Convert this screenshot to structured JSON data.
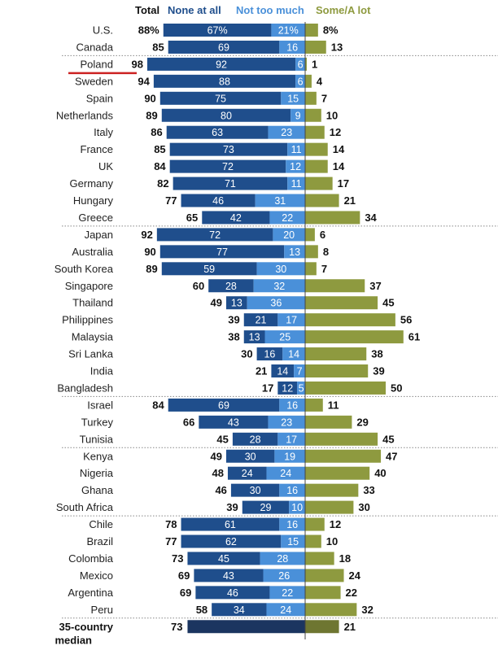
{
  "chart_data": {
    "type": "bar",
    "legend": {
      "total": "Total",
      "none": "None at all",
      "notmuch": "Not too much",
      "some": "Some/A lot"
    },
    "colors": {
      "none": "#1f4e8c",
      "notmuch": "#4a90d9",
      "some": "#8e9a3f",
      "median_none": "#1b3560",
      "median_some": "#6e7631",
      "divider": "#888888",
      "underline": "#cc2222"
    },
    "rows": [
      {
        "name": "U.S.",
        "total": "88%",
        "none": 67,
        "none_label": "67%",
        "notmuch": 21,
        "notmuch_label": "21%",
        "some": 8,
        "some_label": "8%"
      },
      {
        "name": "Canada",
        "total": "85",
        "none": 69,
        "none_label": "69",
        "notmuch": 16,
        "notmuch_label": "16",
        "some": 13,
        "some_label": "13"
      },
      {
        "name": "Poland",
        "total": "98",
        "none": 92,
        "none_label": "92",
        "notmuch": 6,
        "notmuch_label": "6",
        "some": 1,
        "some_label": "1",
        "highlight": true
      },
      {
        "name": "Sweden",
        "total": "94",
        "none": 88,
        "none_label": "88",
        "notmuch": 6,
        "notmuch_label": "6",
        "some": 4,
        "some_label": "4"
      },
      {
        "name": "Spain",
        "total": "90",
        "none": 75,
        "none_label": "75",
        "notmuch": 15,
        "notmuch_label": "15",
        "some": 7,
        "some_label": "7"
      },
      {
        "name": "Netherlands",
        "total": "89",
        "none": 80,
        "none_label": "80",
        "notmuch": 9,
        "notmuch_label": "9",
        "some": 10,
        "some_label": "10"
      },
      {
        "name": "Italy",
        "total": "86",
        "none": 63,
        "none_label": "63",
        "notmuch": 23,
        "notmuch_label": "23",
        "some": 12,
        "some_label": "12"
      },
      {
        "name": "France",
        "total": "85",
        "none": 73,
        "none_label": "73",
        "notmuch": 11,
        "notmuch_label": "11",
        "some": 14,
        "some_label": "14"
      },
      {
        "name": "UK",
        "total": "84",
        "none": 72,
        "none_label": "72",
        "notmuch": 12,
        "notmuch_label": "12",
        "some": 14,
        "some_label": "14"
      },
      {
        "name": "Germany",
        "total": "82",
        "none": 71,
        "none_label": "71",
        "notmuch": 11,
        "notmuch_label": "11",
        "some": 17,
        "some_label": "17"
      },
      {
        "name": "Hungary",
        "total": "77",
        "none": 46,
        "none_label": "46",
        "notmuch": 31,
        "notmuch_label": "31",
        "some": 21,
        "some_label": "21"
      },
      {
        "name": "Greece",
        "total": "65",
        "none": 42,
        "none_label": "42",
        "notmuch": 22,
        "notmuch_label": "22",
        "some": 34,
        "some_label": "34"
      },
      {
        "name": "Japan",
        "total": "92",
        "none": 72,
        "none_label": "72",
        "notmuch": 20,
        "notmuch_label": "20",
        "some": 6,
        "some_label": "6"
      },
      {
        "name": "Australia",
        "total": "90",
        "none": 77,
        "none_label": "77",
        "notmuch": 13,
        "notmuch_label": "13",
        "some": 8,
        "some_label": "8"
      },
      {
        "name": "South Korea",
        "total": "89",
        "none": 59,
        "none_label": "59",
        "notmuch": 30,
        "notmuch_label": "30",
        "some": 7,
        "some_label": "7"
      },
      {
        "name": "Singapore",
        "total": "60",
        "none": 28,
        "none_label": "28",
        "notmuch": 32,
        "notmuch_label": "32",
        "some": 37,
        "some_label": "37"
      },
      {
        "name": "Thailand",
        "total": "49",
        "none": 13,
        "none_label": "13",
        "notmuch": 36,
        "notmuch_label": "36",
        "some": 45,
        "some_label": "45"
      },
      {
        "name": "Philippines",
        "total": "39",
        "none": 21,
        "none_label": "21",
        "notmuch": 17,
        "notmuch_label": "17",
        "some": 56,
        "some_label": "56"
      },
      {
        "name": "Malaysia",
        "total": "38",
        "none": 13,
        "none_label": "13",
        "notmuch": 25,
        "notmuch_label": "25",
        "some": 61,
        "some_label": "61"
      },
      {
        "name": "Sri Lanka",
        "total": "30",
        "none": 16,
        "none_label": "16",
        "notmuch": 14,
        "notmuch_label": "14",
        "some": 38,
        "some_label": "38"
      },
      {
        "name": "India",
        "total": "21",
        "none": 14,
        "none_label": "14",
        "notmuch": 7,
        "notmuch_label": "7",
        "some": 39,
        "some_label": "39"
      },
      {
        "name": "Bangladesh",
        "total": "17",
        "none": 12,
        "none_label": "12",
        "notmuch": 5,
        "notmuch_label": "5",
        "some": 50,
        "some_label": "50"
      },
      {
        "name": "Israel",
        "total": "84",
        "none": 69,
        "none_label": "69",
        "notmuch": 16,
        "notmuch_label": "16",
        "some": 11,
        "some_label": "11"
      },
      {
        "name": "Turkey",
        "total": "66",
        "none": 43,
        "none_label": "43",
        "notmuch": 23,
        "notmuch_label": "23",
        "some": 29,
        "some_label": "29"
      },
      {
        "name": "Tunisia",
        "total": "45",
        "none": 28,
        "none_label": "28",
        "notmuch": 17,
        "notmuch_label": "17",
        "some": 45,
        "some_label": "45"
      },
      {
        "name": "Kenya",
        "total": "49",
        "none": 30,
        "none_label": "30",
        "notmuch": 19,
        "notmuch_label": "19",
        "some": 47,
        "some_label": "47"
      },
      {
        "name": "Nigeria",
        "total": "48",
        "none": 24,
        "none_label": "24",
        "notmuch": 24,
        "notmuch_label": "24",
        "some": 40,
        "some_label": "40"
      },
      {
        "name": "Ghana",
        "total": "46",
        "none": 30,
        "none_label": "30",
        "notmuch": 16,
        "notmuch_label": "16",
        "some": 33,
        "some_label": "33"
      },
      {
        "name": "South Africa",
        "total": "39",
        "none": 29,
        "none_label": "29",
        "notmuch": 10,
        "notmuch_label": "10",
        "some": 30,
        "some_label": "30"
      },
      {
        "name": "Chile",
        "total": "78",
        "none": 61,
        "none_label": "61",
        "notmuch": 16,
        "notmuch_label": "16",
        "some": 12,
        "some_label": "12"
      },
      {
        "name": "Brazil",
        "total": "77",
        "none": 62,
        "none_label": "62",
        "notmuch": 15,
        "notmuch_label": "15",
        "some": 10,
        "some_label": "10"
      },
      {
        "name": "Colombia",
        "total": "73",
        "none": 45,
        "none_label": "45",
        "notmuch": 28,
        "notmuch_label": "28",
        "some": 18,
        "some_label": "18"
      },
      {
        "name": "Mexico",
        "total": "69",
        "none": 43,
        "none_label": "43",
        "notmuch": 26,
        "notmuch_label": "26",
        "some": 24,
        "some_label": "24"
      },
      {
        "name": "Argentina",
        "total": "69",
        "none": 46,
        "none_label": "46",
        "notmuch": 22,
        "notmuch_label": "22",
        "some": 22,
        "some_label": "22"
      },
      {
        "name": "Peru",
        "total": "58",
        "none": 34,
        "none_label": "34",
        "notmuch": 24,
        "notmuch_label": "24",
        "some": 32,
        "some_label": "32"
      }
    ],
    "median": {
      "name_line1": "35-country",
      "name_line2": "median",
      "total": "73",
      "some": 21,
      "some_label": "21"
    },
    "divider_after": [
      "Canada",
      "Greece",
      "Bangladesh",
      "Tunisia",
      "South Africa",
      "Peru"
    ]
  }
}
